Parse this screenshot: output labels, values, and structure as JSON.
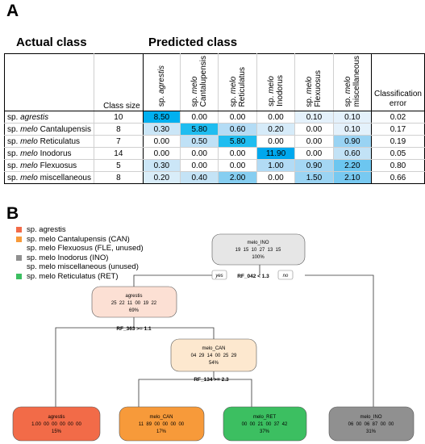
{
  "panel_a": {
    "letter": "A",
    "actual_label": "Actual class",
    "predicted_label": "Predicted class",
    "class_size_header": "Class size",
    "error_header_line1": "Classification",
    "error_header_line2": "error",
    "columns": [
      {
        "prefix": "sp. ",
        "name": "agrestis",
        "prefix_plain": "",
        "line2": ""
      },
      {
        "prefix": "sp. ",
        "name": "melo",
        "line2": "Cantalupensis"
      },
      {
        "prefix": "sp. ",
        "name": "melo",
        "line2": "Reticulatus"
      },
      {
        "prefix": "sp. ",
        "name": "melo",
        "line2": "Inodorus"
      },
      {
        "prefix": "sp. ",
        "name": "melo",
        "line2": "Flexuosus"
      },
      {
        "prefix": "sp. ",
        "name": "melo",
        "line2": "miscellaneous"
      }
    ],
    "rows": [
      {
        "prefix": "sp. ",
        "name": "agrestis",
        "suffix": "",
        "size": "10",
        "values": [
          "8.50",
          "0.00",
          "0.00",
          "0.00",
          "0.10",
          "0.10"
        ],
        "error": "0.02"
      },
      {
        "prefix": "sp. ",
        "name": "melo",
        "suffix": " Cantalupensis",
        "size": "8",
        "values": [
          "0.30",
          "5.80",
          "0.60",
          "0.20",
          "0.00",
          "0.10"
        ],
        "error": "0.17"
      },
      {
        "prefix": "sp. ",
        "name": "melo",
        "suffix": " Reticulatus",
        "size": "7",
        "values": [
          "0.00",
          "0.50",
          "5.80",
          "0.00",
          "0.00",
          "0.90"
        ],
        "error": "0.19"
      },
      {
        "prefix": "sp. ",
        "name": "melo",
        "suffix": " Inodorus",
        "size": "14",
        "values": [
          "0.00",
          "0.00",
          "0.00",
          "11.90",
          "0.00",
          "0.60"
        ],
        "error": "0.05"
      },
      {
        "prefix": "sp. ",
        "name": "melo",
        "suffix": " Flexuosus",
        "size": "5",
        "values": [
          "0.30",
          "0.00",
          "0.00",
          "1.00",
          "0.90",
          "2.20"
        ],
        "error": "0.80"
      },
      {
        "prefix": "sp. ",
        "name": "melo",
        "suffix": " miscellaneous",
        "size": "8",
        "values": [
          "0.20",
          "0.40",
          "2.00",
          "0.00",
          "1.50",
          "2.10"
        ],
        "error": "0.66"
      }
    ],
    "shading": [
      [
        "#00b0f0",
        "#ffffff",
        "#ffffff",
        "#ffffff",
        "#e4f1fb",
        "#e4f1fb"
      ],
      [
        "#cbe6f7",
        "#1fbdf0",
        "#b4dcf5",
        "#d6ebf9",
        "#ffffff",
        "#e4f1fb"
      ],
      [
        "#ffffff",
        "#bfe1f6",
        "#1fbdf0",
        "#ffffff",
        "#ffffff",
        "#99d3f3"
      ],
      [
        "#ffffff",
        "#ffffff",
        "#ffffff",
        "#00a8ee",
        "#ffffff",
        "#c2e2f6"
      ],
      [
        "#cbe6f7",
        "#ffffff",
        "#ffffff",
        "#b2dbf5",
        "#a5d7f4",
        "#6cc6f0"
      ],
      [
        "#d9edf9",
        "#c4e3f6",
        "#86cef1",
        "#ffffff",
        "#9bd4f3",
        "#78c9f1"
      ]
    ]
  },
  "panel_b": {
    "letter": "B",
    "legend": [
      {
        "label": "sp. agrestis",
        "color": "#f26b48"
      },
      {
        "label": "sp. melo Cantalupensis (CAN)",
        "color": "#f79a3a"
      },
      {
        "label": "sp. melo Flexuosus (FLE, unused)",
        "color": ""
      },
      {
        "label": "sp. melo Inodorus (INO)",
        "color": "#909090"
      },
      {
        "label": "sp. melo miscellaneous (unused)",
        "color": ""
      },
      {
        "label": "sp. melo Reticulatus (RET)",
        "color": "#3cbf61"
      }
    ],
    "nodes": {
      "root": {
        "name": "melo_INO",
        "values": "19  15  10  27  13  15",
        "pct": "100%",
        "fill": "#e6e6e6"
      },
      "agrestis_inner": {
        "name": "agrestis",
        "values": "25  22  11  00  19  22",
        "pct": "69%",
        "fill": "#fce0d4"
      },
      "can_inner": {
        "name": "melo_CAN",
        "values": "04  29  14  00  25  29",
        "pct": "54%",
        "fill": "#fde8cf"
      },
      "leaf_agrestis": {
        "name": "agrestis",
        "values": "1.00  00  00  00  00  00",
        "pct": "15%",
        "fill": "#f26b48"
      },
      "leaf_can": {
        "name": "melo_CAN",
        "values": "11  89  00  00  00  00",
        "pct": "17%",
        "fill": "#f79a3a"
      },
      "leaf_ret": {
        "name": "melo_RET",
        "values": "00  00  21  00  37  42",
        "pct": "37%",
        "fill": "#3cbf61"
      },
      "leaf_ino": {
        "name": "melo_INO",
        "values": "06  00  06  87  00  00",
        "pct": "31%",
        "fill": "#909090"
      }
    },
    "splits": {
      "root": "RF_042 < 1.3",
      "agrestis": "RF_363 >= 1.1",
      "can": "RF_134 >= 2.3"
    },
    "yes_label": "yes",
    "no_label": "no"
  }
}
